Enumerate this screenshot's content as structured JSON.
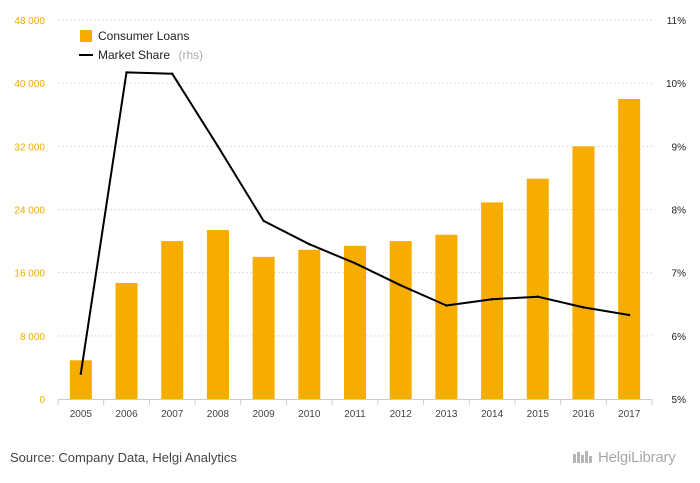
{
  "chart_data": {
    "type": "bar",
    "categories": [
      "2005",
      "2006",
      "2007",
      "2008",
      "2009",
      "2010",
      "2011",
      "2012",
      "2013",
      "2014",
      "2015",
      "2016",
      "2017"
    ],
    "series": [
      {
        "name": "Consumer Loans",
        "type": "bar",
        "axis": "left",
        "color": "#f7ac00",
        "values": [
          4900,
          14700,
          20000,
          21400,
          18000,
          18900,
          19400,
          20000,
          20800,
          24900,
          27900,
          32000,
          38000
        ]
      },
      {
        "name": "Market Share",
        "legend_note": "(rhs)",
        "type": "line",
        "axis": "right",
        "color": "#000000",
        "values": [
          5.4,
          10.17,
          10.15,
          9.0,
          7.82,
          7.45,
          7.15,
          6.8,
          6.48,
          6.58,
          6.62,
          6.45,
          6.33
        ]
      }
    ],
    "yleft": {
      "ticks": [
        "0",
        "8 000",
        "16 000",
        "24 000",
        "32 000",
        "40 000",
        "48 000"
      ],
      "lim": [
        0,
        48000
      ]
    },
    "yright": {
      "ticks": [
        "5%",
        "6%",
        "7%",
        "8%",
        "9%",
        "10%",
        "11%"
      ],
      "lim": [
        5,
        11
      ]
    },
    "grid": true,
    "legend": "top-left"
  },
  "footer": {
    "source": "Source: Company Data, Helgi Analytics",
    "brand": "HelgiLibrary"
  }
}
